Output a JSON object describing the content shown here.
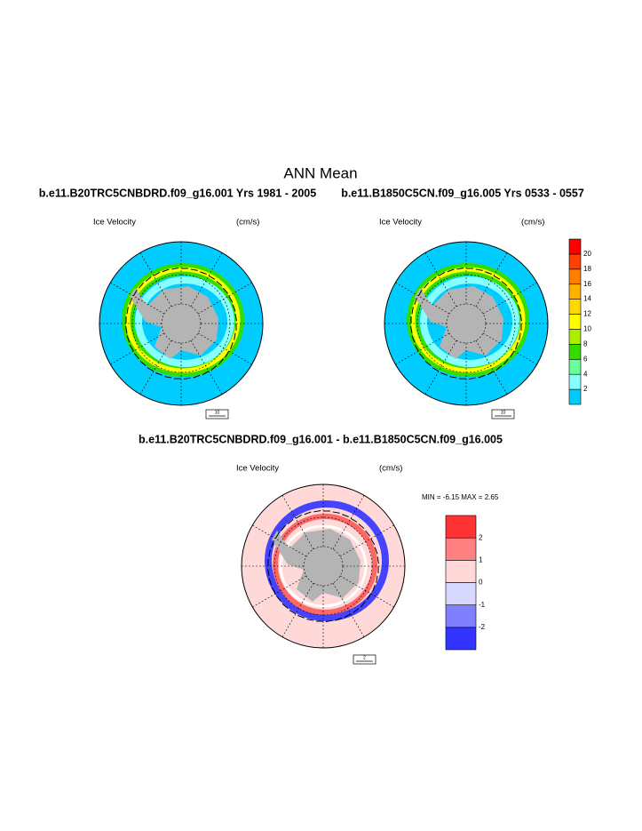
{
  "title": "ANN Mean",
  "panels": [
    {
      "subtitle": "b.e11.B20TRC5CNBDRD.f09_g16.001  Yrs 1981 - 2005",
      "label_left": "Ice Velocity",
      "label_right": "(cm/s)",
      "ref_vector": 10
    },
    {
      "subtitle": "b.e11.B1850C5CN.f09_g16.005  Yrs 0533 - 0557",
      "label_left": "Ice Velocity",
      "label_right": "(cm/s)",
      "ref_vector": 10
    }
  ],
  "colorbar": {
    "colors": [
      "#00ccff",
      "#88ffff",
      "#66ff99",
      "#33dd00",
      "#aaee00",
      "#ffff00",
      "#ffd800",
      "#ffb000",
      "#ff8000",
      "#ff4000",
      "#ff0000"
    ],
    "labels": [
      2,
      4,
      6,
      8,
      10,
      12,
      14,
      16,
      18,
      20
    ]
  },
  "difference": {
    "title": "b.e11.B20TRC5CNBDRD.f09_g16.001 - b.e11.B1850C5CN.f09_g16.005",
    "label_left": "Ice Velocity",
    "label_right": "(cm/s)",
    "stats": "MIN =  -6.15 MAX =   2.65",
    "ref_vector": 2,
    "colorbar": {
      "colors": [
        "#3333ff",
        "#8080ff",
        "#d8d8ff",
        "#ffd8d8",
        "#ff8080",
        "#ff3333"
      ],
      "labels": [
        -2,
        -1,
        0,
        1,
        2
      ]
    }
  }
}
